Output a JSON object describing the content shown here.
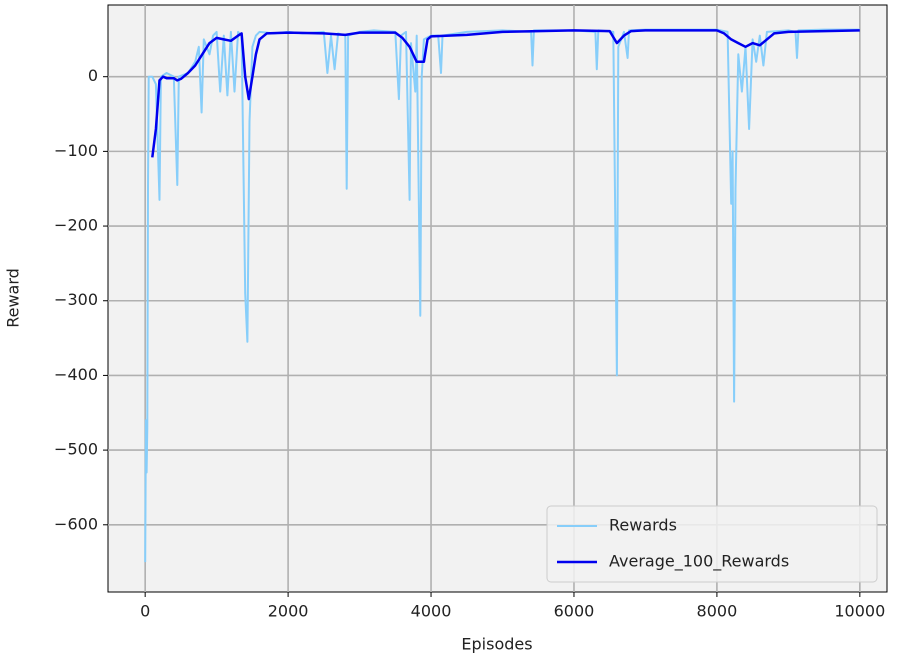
{
  "chart_data": {
    "type": "line",
    "xlabel": "Episodes",
    "ylabel": "Reward",
    "xlim": [
      -520,
      10380
    ],
    "ylim": [
      -690,
      96
    ],
    "xticks": [
      0,
      2000,
      4000,
      6000,
      8000,
      10000
    ],
    "yticks": [
      {
        "value": -600,
        "label": "−600"
      },
      {
        "value": -500,
        "label": "−500"
      },
      {
        "value": -400,
        "label": "−400"
      },
      {
        "value": -300,
        "label": "−300"
      },
      {
        "value": -200,
        "label": "−200"
      },
      {
        "value": -100,
        "label": "−100"
      },
      0
    ],
    "grid": true,
    "legend": "lower right",
    "series": [
      {
        "name": "Rewards",
        "color": "#87cefa",
        "x": [
          0,
          10,
          20,
          30,
          40,
          50,
          100,
          150,
          200,
          220,
          300,
          400,
          450,
          470,
          600,
          700,
          750,
          790,
          820,
          900,
          950,
          1000,
          1050,
          1100,
          1150,
          1200,
          1250,
          1300,
          1350,
          1400,
          1430,
          1460,
          1500,
          1550,
          1600,
          1800,
          2000,
          2200,
          2500,
          2550,
          2600,
          2650,
          2700,
          2800,
          2820,
          2840,
          3000,
          3200,
          3500,
          3550,
          3580,
          3650,
          3700,
          3720,
          3780,
          3800,
          3850,
          3870,
          3900,
          4000,
          4100,
          4140,
          4160,
          4500,
          5000,
          5400,
          5420,
          5440,
          6000,
          6300,
          6320,
          6340,
          6550,
          6600,
          6620,
          6700,
          6750,
          6770,
          7000,
          8000,
          8150,
          8200,
          8220,
          8240,
          8260,
          8300,
          8350,
          8400,
          8450,
          8500,
          8550,
          8600,
          8650,
          8700,
          9000,
          9100,
          9120,
          9140,
          9500,
          10000
        ],
        "values": [
          -650,
          -460,
          -530,
          -470,
          -150,
          0,
          0,
          -10,
          -165,
          0,
          5,
          0,
          -145,
          0,
          5,
          20,
          40,
          -48,
          50,
          30,
          55,
          60,
          -20,
          55,
          -25,
          60,
          -20,
          60,
          55,
          -290,
          -355,
          -60,
          40,
          55,
          60,
          58,
          60,
          58,
          60,
          5,
          55,
          10,
          58,
          55,
          -150,
          55,
          60,
          62,
          60,
          -30,
          55,
          60,
          -165,
          45,
          -20,
          55,
          -320,
          0,
          50,
          55,
          55,
          5,
          55,
          60,
          62,
          60,
          15,
          62,
          62,
          60,
          10,
          62,
          60,
          -400,
          40,
          60,
          25,
          62,
          63,
          63,
          60,
          -170,
          -100,
          -435,
          -150,
          30,
          -20,
          40,
          -70,
          50,
          20,
          55,
          15,
          60,
          62,
          60,
          25,
          62,
          63,
          63
        ]
      },
      {
        "name": "Average_100_Rewards",
        "color": "#0000ee",
        "x": [
          100,
          150,
          200,
          250,
          300,
          400,
          450,
          500,
          600,
          700,
          800,
          900,
          1000,
          1100,
          1200,
          1300,
          1350,
          1400,
          1450,
          1500,
          1550,
          1600,
          1700,
          2000,
          2500,
          2800,
          3000,
          3500,
          3600,
          3700,
          3800,
          3900,
          3950,
          4000,
          4500,
          5000,
          6000,
          6500,
          6600,
          6700,
          6800,
          7000,
          8000,
          8100,
          8200,
          8300,
          8400,
          8500,
          8600,
          8700,
          8800,
          9000,
          10000
        ],
        "values": [
          -108,
          -70,
          -5,
          0,
          -2,
          -2,
          -5,
          -3,
          5,
          15,
          30,
          45,
          52,
          50,
          48,
          55,
          58,
          0,
          -30,
          0,
          30,
          50,
          58,
          59,
          58,
          56,
          59,
          59,
          52,
          40,
          20,
          20,
          50,
          54,
          56,
          60,
          62,
          61,
          45,
          55,
          61,
          62,
          62,
          58,
          50,
          45,
          40,
          45,
          42,
          50,
          58,
          60,
          62
        ]
      }
    ]
  }
}
